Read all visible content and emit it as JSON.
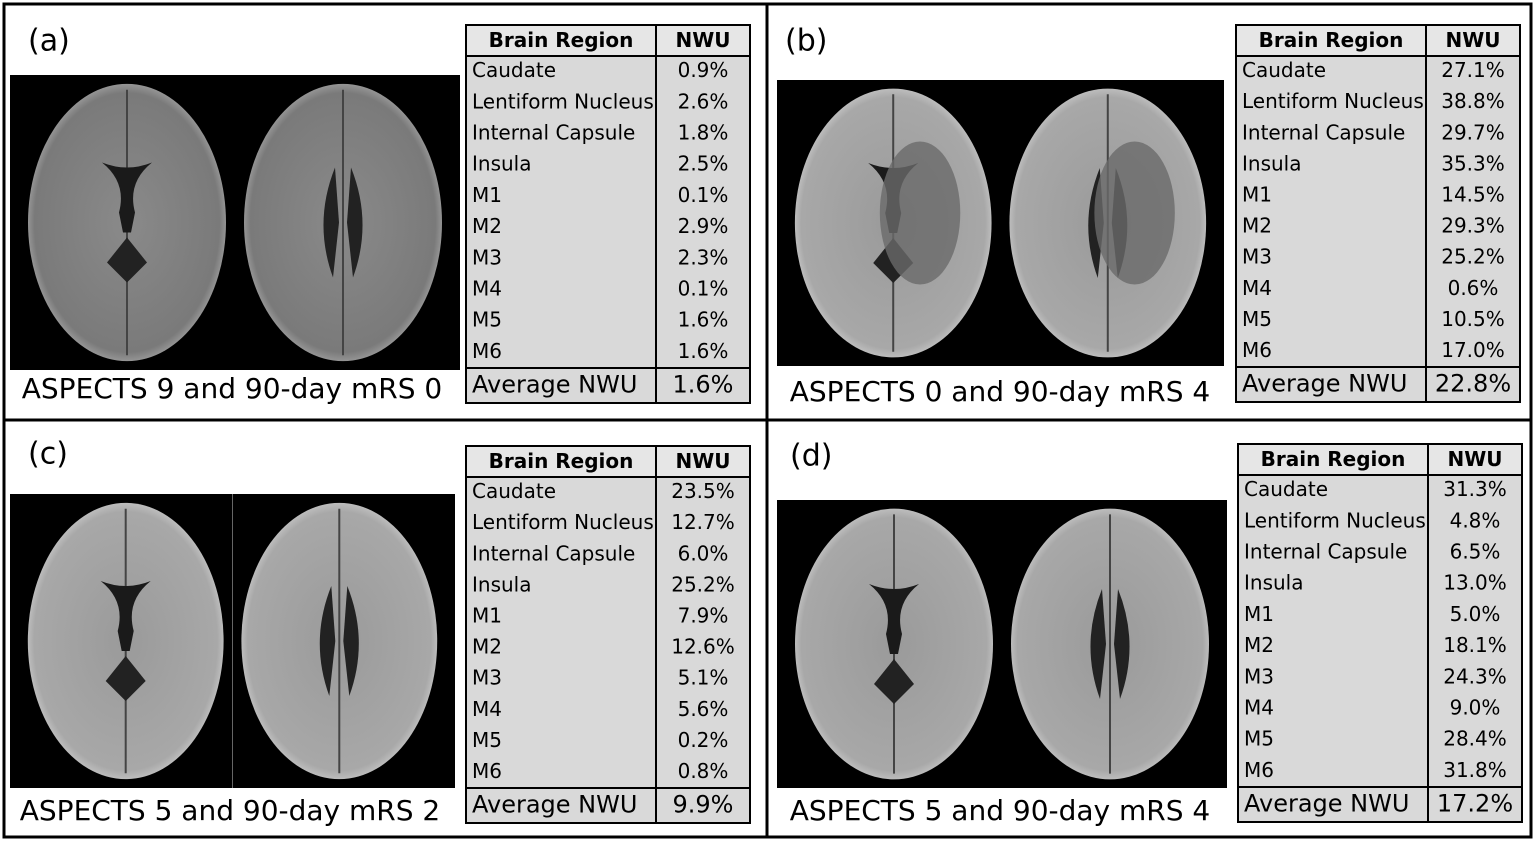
{
  "panels": [
    {
      "label": "(a)",
      "caption": "ASPECTS 9 and 90-day mRS 0",
      "table": {
        "header": [
          "Brain Region",
          "NWU"
        ],
        "rows": [
          [
            "Caudate",
            "0.9%"
          ],
          [
            "Lentiform Nucleus",
            "2.6%"
          ],
          [
            "Internal Capsule",
            "1.8%"
          ],
          [
            "Insula",
            "2.5%"
          ],
          [
            "M1",
            "0.1%"
          ],
          [
            "M2",
            "2.9%"
          ],
          [
            "M3",
            "2.3%"
          ],
          [
            "M4",
            "0.1%"
          ],
          [
            "M5",
            "1.6%"
          ],
          [
            "M6",
            "1.6%"
          ]
        ],
        "footer": [
          "Average NWU",
          "1.6%"
        ]
      }
    },
    {
      "label": "(b)",
      "caption": "ASPECTS 0 and 90-day mRS 4",
      "table": {
        "header": [
          "Brain Region",
          "NWU"
        ],
        "rows": [
          [
            "Caudate",
            "27.1%"
          ],
          [
            "Lentiform Nucleus",
            "38.8%"
          ],
          [
            "Internal Capsule",
            "29.7%"
          ],
          [
            "Insula",
            "35.3%"
          ],
          [
            "M1",
            "14.5%"
          ],
          [
            "M2",
            "29.3%"
          ],
          [
            "M3",
            "25.2%"
          ],
          [
            "M4",
            "0.6%"
          ],
          [
            "M5",
            "10.5%"
          ],
          [
            "M6",
            "17.0%"
          ]
        ],
        "footer": [
          "Average NWU",
          "22.8%"
        ]
      }
    },
    {
      "label": "(c)",
      "caption": "ASPECTS 5 and 90-day mRS 2",
      "table": {
        "header": [
          "Brain Region",
          "NWU"
        ],
        "rows": [
          [
            "Caudate",
            "23.5%"
          ],
          [
            "Lentiform Nucleus",
            "12.7%"
          ],
          [
            "Internal Capsule",
            "6.0%"
          ],
          [
            "Insula",
            "25.2%"
          ],
          [
            "M1",
            "7.9%"
          ],
          [
            "M2",
            "12.6%"
          ],
          [
            "M3",
            "5.1%"
          ],
          [
            "M4",
            "5.6%"
          ],
          [
            "M5",
            "0.2%"
          ],
          [
            "M6",
            "0.8%"
          ]
        ],
        "footer": [
          "Average NWU",
          "9.9%"
        ]
      }
    },
    {
      "label": "(d)",
      "caption": "ASPECTS 5 and 90-day mRS 4",
      "table": {
        "header": [
          "Brain Region",
          "NWU"
        ],
        "rows": [
          [
            "Caudate",
            "31.3%"
          ],
          [
            "Lentiform Nucleus",
            "4.8%"
          ],
          [
            "Internal Capsule",
            "6.5%"
          ],
          [
            "Insula",
            "13.0%"
          ],
          [
            "M1",
            "5.0%"
          ],
          [
            "M2",
            "18.1%"
          ],
          [
            "M3",
            "24.3%"
          ],
          [
            "M4",
            "9.0%"
          ],
          [
            "M5",
            "28.4%"
          ],
          [
            "M6",
            "31.8%"
          ]
        ],
        "footer": [
          "Average NWU",
          "17.2%"
        ]
      }
    }
  ]
}
